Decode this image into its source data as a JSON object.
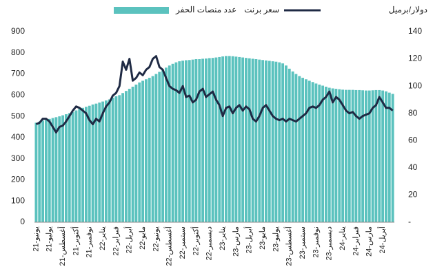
{
  "chart_data": {
    "type": "bar",
    "y2label": "دولار/برميل",
    "categories": [
      "يونيو-21",
      null,
      null,
      null,
      "يوليو-21",
      null,
      null,
      null,
      "أغسطس-21",
      null,
      null,
      null,
      "أكتوبر-21",
      null,
      null,
      null,
      "نوفمبر-21",
      null,
      null,
      null,
      "يناير-22",
      null,
      null,
      null,
      "فبراير-22",
      null,
      null,
      null,
      "أبريل-22",
      null,
      null,
      null,
      "مايو-22",
      null,
      null,
      null,
      "يونيو-22",
      null,
      null,
      null,
      "أغسطس-22",
      null,
      null,
      null,
      "سبتمبر-22",
      null,
      null,
      null,
      "أكتوبر-22",
      null,
      null,
      null,
      "ديسمبر-22",
      null,
      null,
      null,
      "يناير-23",
      null,
      null,
      null,
      "مارس-23",
      null,
      null,
      null,
      "أبريل-23",
      null,
      null,
      null,
      "مايو-23",
      null,
      null,
      null,
      "يوليو-23",
      null,
      null,
      null,
      "أغسطس-23",
      null,
      null,
      null,
      "سبتمبر-23",
      null,
      null,
      null,
      "نوفمبر-23",
      null,
      null,
      null,
      "ديسمبر-23",
      null,
      null,
      null,
      "يناير-24",
      null,
      null,
      null,
      "فبراير-24",
      null,
      null,
      null,
      "مارس-24",
      null,
      null,
      null,
      "أبريل-24",
      null,
      null,
      null
    ],
    "series": [
      {
        "name": "عدد منصات الحفر",
        "type": "bar",
        "color": "#5bc2be",
        "values": [
          470,
          475,
          480,
          485,
          488,
          492,
          496,
          500,
          505,
          510,
          515,
          520,
          528,
          535,
          540,
          545,
          550,
          556,
          560,
          565,
          570,
          575,
          580,
          588,
          595,
          600,
          610,
          620,
          630,
          640,
          650,
          660,
          668,
          675,
          682,
          690,
          700,
          710,
          720,
          730,
          740,
          748,
          755,
          760,
          763,
          765,
          766,
          768,
          770,
          770,
          772,
          773,
          775,
          776,
          778,
          780,
          783,
          785,
          785,
          784,
          782,
          780,
          778,
          776,
          774,
          772,
          770,
          768,
          766,
          764,
          762,
          760,
          758,
          755,
          750,
          740,
          725,
          712,
          700,
          690,
          682,
          675,
          668,
          662,
          655,
          650,
          645,
          640,
          635,
          632,
          630,
          628,
          626,
          625,
          625,
          625,
          624,
          624,
          623,
          622,
          622,
          623,
          624,
          624,
          622,
          618,
          612,
          606
        ]
      },
      {
        "name": "سعر برنت",
        "type": "line",
        "axis": "y2",
        "color": "#1f2a44",
        "values": [
          72,
          73,
          76,
          76,
          74,
          70,
          66,
          70,
          71,
          74,
          78,
          82,
          85,
          84,
          82,
          80,
          75,
          72,
          76,
          74,
          80,
          85,
          88,
          93,
          95,
          100,
          118,
          112,
          120,
          104,
          106,
          110,
          108,
          112,
          114,
          120,
          122,
          114,
          112,
          106,
          100,
          98,
          97,
          95,
          100,
          92,
          93,
          88,
          90,
          96,
          98,
          92,
          94,
          96,
          90,
          86,
          78,
          84,
          85,
          80,
          84,
          86,
          82,
          85,
          83,
          76,
          74,
          78,
          84,
          86,
          82,
          78,
          76,
          75,
          76,
          74,
          76,
          75,
          74,
          76,
          78,
          80,
          84,
          85,
          84,
          86,
          90,
          92,
          96,
          88,
          92,
          90,
          86,
          82,
          80,
          81,
          78,
          76,
          78,
          79,
          80,
          84,
          86,
          92,
          88,
          84,
          84,
          82
        ]
      }
    ],
    "ylim": [
      0,
      900
    ],
    "yticks": [
      0,
      100,
      200,
      300,
      400,
      500,
      600,
      700,
      800,
      900
    ],
    "y2lim": [
      0,
      140
    ],
    "y2ticks": [
      {
        "value": 0,
        "label": "-"
      },
      20,
      40,
      60,
      80,
      100,
      120,
      140
    ]
  }
}
